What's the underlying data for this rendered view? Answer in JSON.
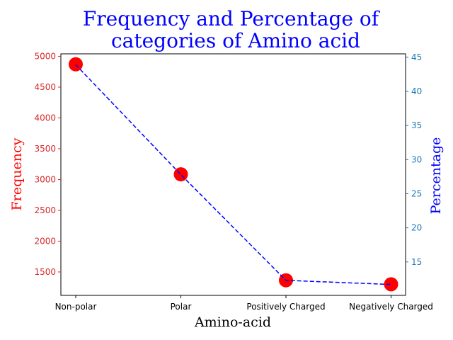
{
  "chart_data": {
    "type": "line",
    "title_lines": [
      "Frequency and Percentage of",
      "categories of Amino acid"
    ],
    "xlabel": "Amino-acid",
    "ylabel_left": "Frequency",
    "ylabel_right": "Percentage",
    "categories": [
      "Non-polar",
      "Polar",
      "Positively Charged",
      "Negatively Charged"
    ],
    "series": [
      {
        "name": "Frequency",
        "axis": "left",
        "values": [
          4870,
          3085,
          1365,
          1300
        ],
        "style": "markers",
        "color": "#ff0000"
      },
      {
        "name": "Percentage",
        "axis": "right",
        "values": [
          43.9,
          27.8,
          12.3,
          11.7
        ],
        "style": "dashed-line",
        "color": "#0000ff"
      }
    ],
    "ylim_left": [
      1120,
      5040
    ],
    "ylim_right": [
      10.1,
      45.5
    ],
    "yticks_left": [
      1500,
      2000,
      2500,
      3000,
      3500,
      4000,
      4500,
      5000
    ],
    "yticks_right": [
      15,
      20,
      25,
      30,
      35,
      40,
      45
    ],
    "colors": {
      "title": "#0000ff",
      "left_axis": "#d62728",
      "right_axis": "#1f77b4",
      "left_label": "#ff0000",
      "right_label": "#0000ff"
    },
    "grid": false
  }
}
